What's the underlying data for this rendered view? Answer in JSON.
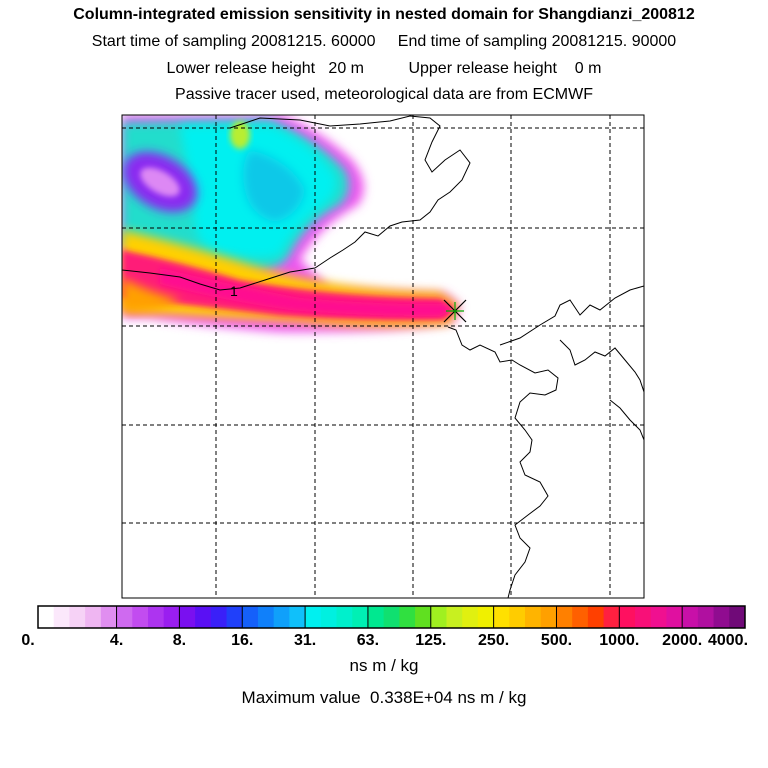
{
  "header": {
    "title": "Column-integrated emission sensitivity in nested domain for Shangdianzi_200812",
    "sampling": "Start time of sampling 20081215. 60000     End time of sampling 20081215. 90000",
    "release": "Lower release height   20 m          Upper release height    0 m",
    "tracer": "Passive tracer used, meteorological data are from ECMWF"
  },
  "map": {
    "trajectory_label": "1",
    "receptor_marker": "release-site-cross"
  },
  "colorbar": {
    "ticks": [
      "0.",
      "4.",
      "8.",
      "16.",
      "31.",
      "63.",
      "125.",
      "250.",
      "500.",
      "1000.",
      "2000.",
      "4000."
    ],
    "unit": "ns m / kg",
    "colors": [
      "#ffffff",
      "#fbe8fb",
      "#f6d2f6",
      "#efb6f2",
      "#e08ef0",
      "#cf6af0",
      "#c24cf0",
      "#ad34f0",
      "#9a1ef0",
      "#7a10f0",
      "#5a10f4",
      "#3a20f8",
      "#2040fa",
      "#1560fa",
      "#1080fa",
      "#10a0fa",
      "#10c0fa",
      "#00f0f0",
      "#00f0e0",
      "#00f0cc",
      "#00f0b4",
      "#00e890",
      "#10e070",
      "#30e040",
      "#60e020",
      "#a0f020",
      "#c8f020",
      "#e0f010",
      "#f0f000",
      "#ffe000",
      "#ffcc00",
      "#ffb400",
      "#ffa000",
      "#ff8000",
      "#ff6000",
      "#ff4000",
      "#ff2040",
      "#ff1060",
      "#f81078",
      "#f01090",
      "#e010a0",
      "#c810a8",
      "#b010a0",
      "#900c90",
      "#700a78"
    ]
  },
  "max_value": "Maximum value  0.338E+04 ns m / kg"
}
